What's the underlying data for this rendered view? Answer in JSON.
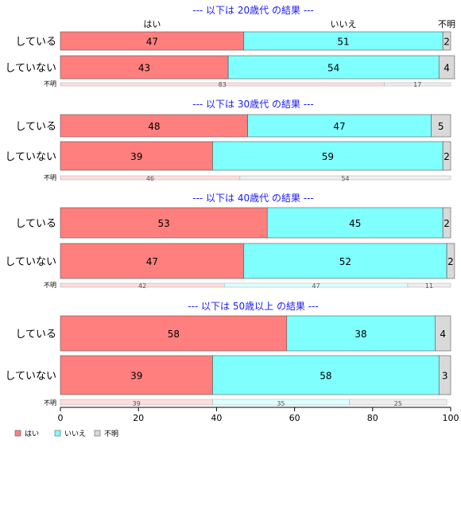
{
  "chart_data": {
    "type": "bar",
    "orientation": "horizontal",
    "stacked": true,
    "xlim": [
      0,
      100
    ],
    "x_ticks": [
      0,
      20,
      40,
      60,
      80,
      100
    ],
    "column_headers": [
      "はい",
      "いいえ",
      "不明"
    ],
    "legend": {
      "placement": "bottom-left",
      "items": [
        {
          "label": "はい",
          "color": "#ff7f7f"
        },
        {
          "label": "いいえ",
          "color": "#80ffff"
        },
        {
          "label": "不明",
          "color": "#d9d9d9"
        }
      ]
    },
    "colors": {
      "yes": "#ff7f7f",
      "no": "#80ffff",
      "unknown": "#d9d9d9",
      "yes_light": "#ffdddd",
      "no_light": "#ddffff",
      "unknown_light": "#eeeeee",
      "title": "#1a1aff"
    },
    "panels": [
      {
        "title": "--- 以下は 20歳代 の結果 ---",
        "show_headers": true,
        "rows": [
          {
            "label": "している",
            "values": [
              47,
              51,
              2
            ]
          },
          {
            "label": "していない",
            "values": [
              43,
              54,
              4
            ]
          }
        ],
        "unknown_row": {
          "label": "不明",
          "values": [
            83,
            0,
            17
          ]
        }
      },
      {
        "title": "--- 以下は 30歳代 の結果 ---",
        "show_headers": false,
        "rows": [
          {
            "label": "している",
            "values": [
              48,
              47,
              5
            ]
          },
          {
            "label": "していない",
            "values": [
              39,
              59,
              2
            ]
          }
        ],
        "unknown_row": {
          "label": "不明",
          "values": [
            46,
            0,
            54
          ]
        }
      },
      {
        "title": "--- 以下は 40歳代 の結果 ---",
        "show_headers": false,
        "rows": [
          {
            "label": "している",
            "values": [
              53,
              45,
              2
            ]
          },
          {
            "label": "していない",
            "values": [
              47,
              52,
              2
            ]
          }
        ],
        "unknown_row": {
          "label": "不明",
          "values": [
            42,
            47,
            11
          ]
        }
      },
      {
        "title": "--- 以下は 50歳以上 の結果 ---",
        "show_headers": false,
        "rows": [
          {
            "label": "している",
            "values": [
              58,
              38,
              4
            ]
          },
          {
            "label": "していない",
            "values": [
              39,
              58,
              3
            ]
          }
        ],
        "unknown_row": {
          "label": "不明",
          "values": [
            39,
            35,
            25
          ]
        }
      }
    ]
  }
}
